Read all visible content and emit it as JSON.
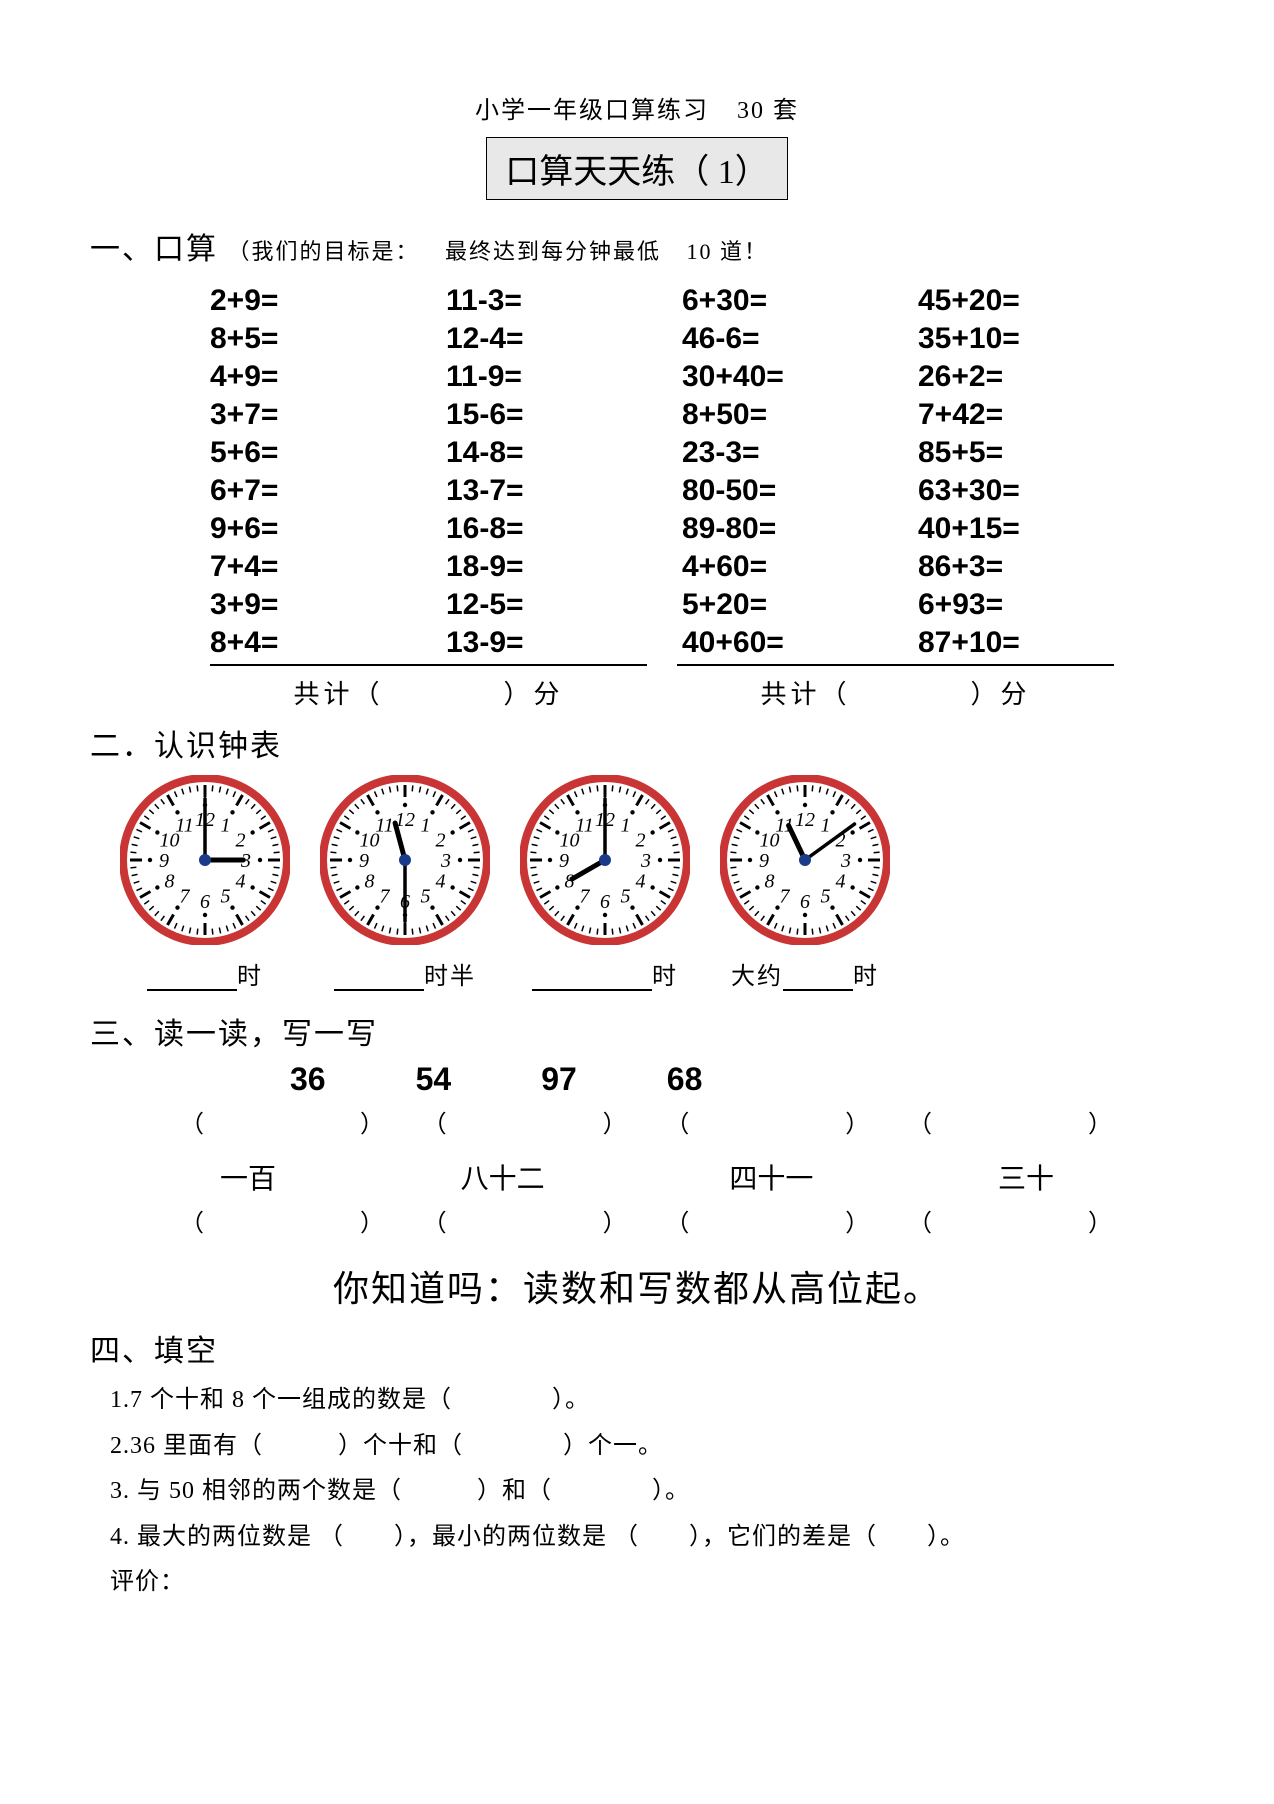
{
  "header": {
    "subtitle_left": "小学一年级口算练习",
    "subtitle_right": "30 套",
    "title": "口算天天练（ 1）"
  },
  "section1": {
    "heading": "一、口算",
    "goal_l": "（我们的目标是：",
    "goal_m": "最终达到每分钟最低",
    "goal_r": "10 道！",
    "grid": [
      [
        "2+9=",
        "11-3=",
        "6+30=",
        "45+20="
      ],
      [
        "8+5=",
        "12-4=",
        "46-6=",
        "35+10="
      ],
      [
        "4+9=",
        "11-9=",
        "30+40=",
        "26+2="
      ],
      [
        "3+7=",
        "15-6=",
        "8+50=",
        "7+42="
      ],
      [
        "5+6=",
        "14-8=",
        "23-3=",
        "85+5="
      ],
      [
        "6+7=",
        "13-7=",
        "80-50=",
        "63+30="
      ],
      [
        "9+6=",
        "16-8=",
        "89-80=",
        "40+15="
      ],
      [
        "7+4=",
        "18-9=",
        "4+60=",
        "86+3="
      ],
      [
        "3+9=",
        "12-5=",
        "5+20=",
        "6+93="
      ],
      [
        "8+4=",
        "13-9=",
        "40+60=",
        "87+10="
      ]
    ],
    "total_label": "共计（　　　　）分"
  },
  "section2": {
    "heading": "二．认识钟表",
    "clocks": [
      {
        "hour": 3,
        "minute": 0,
        "label_suffix": "时",
        "prefix": "",
        "blank_w": 90
      },
      {
        "hour": 11,
        "minute": 30,
        "label_suffix": "时半",
        "prefix": "",
        "blank_w": 90
      },
      {
        "hour": 8,
        "minute": 0,
        "label_suffix": "时",
        "prefix": "",
        "blank_w": 120
      },
      {
        "hour": 11,
        "minute": 9,
        "label_suffix": "时",
        "prefix": "大约",
        "blank_w": 70
      }
    ],
    "clock_style": {
      "size": 170,
      "ring_color": "#c93434",
      "face_color": "#ffffff",
      "center_color": "#1a3a8a",
      "tick_color": "#000000",
      "num_color": "#000000"
    }
  },
  "section3": {
    "heading": "三、读一读，写一写",
    "nums": [
      "36",
      "54",
      "97",
      "68"
    ],
    "paren": "（　　　　）",
    "cn_words": [
      "一百",
      "八十二",
      "四十一",
      "三十"
    ]
  },
  "tip": "你知道吗：读数和写数都从高位起。",
  "section4": {
    "heading": "四、填空",
    "items": [
      "1.7 个十和  8 个一组成的数是（　　　　）。",
      "2.36 里面有（　　　）个十和（　　　　）个一。",
      "3. 与 50 相邻的两个数是（　　　）和（　　　　）。",
      "4. 最大的两位数是 （　　），最小的两位数是 （　　），它们的差是（　　）。",
      "评价："
    ]
  }
}
